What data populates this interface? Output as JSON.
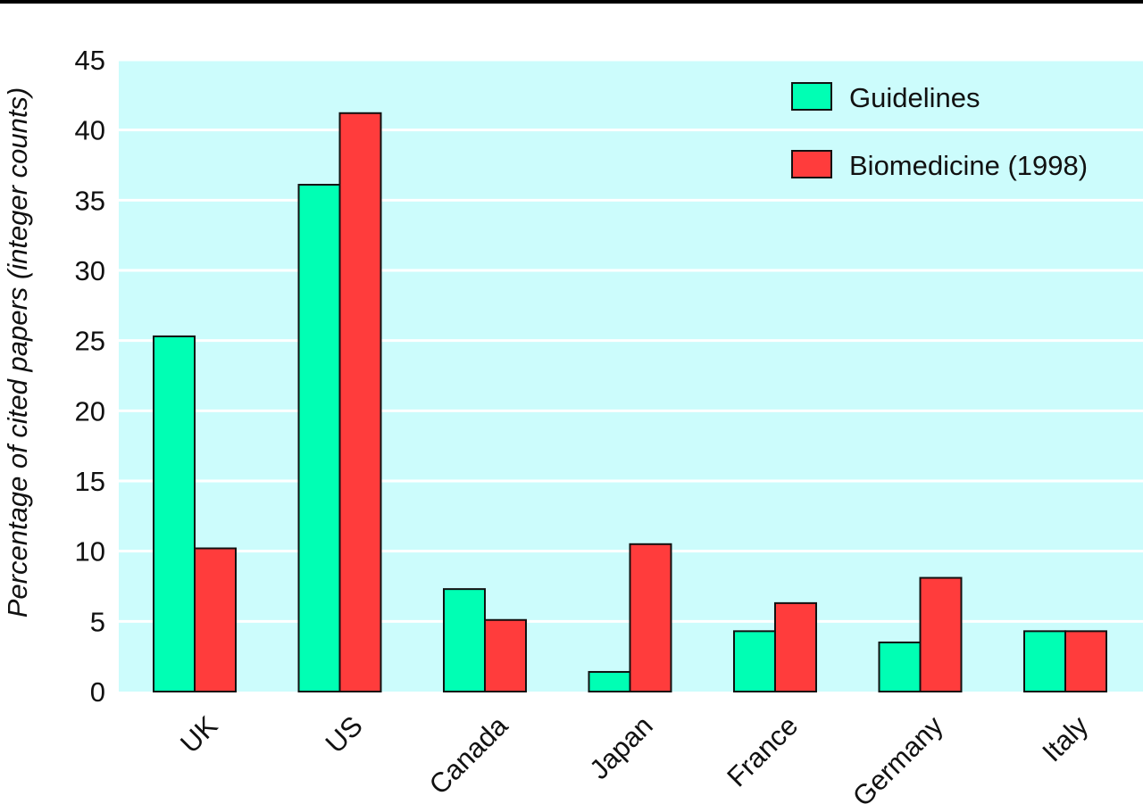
{
  "chart_data": {
    "type": "bar",
    "ylabel": "Percentage of cited papers (integer counts)",
    "xlabel": "",
    "categories": [
      "UK",
      "US",
      "Canada",
      "Japan",
      "France",
      "Germany",
      "Italy"
    ],
    "series": [
      {
        "name": "Guidelines",
        "color": "#00ffb4",
        "values": [
          25.3,
          36.1,
          7.3,
          1.4,
          4.3,
          3.5,
          4.3
        ]
      },
      {
        "name": "Biomedicine (1998)",
        "color": "#ff3c3c",
        "values": [
          10.2,
          41.2,
          5.1,
          10.5,
          6.3,
          8.1,
          4.3
        ]
      }
    ],
    "ylim": [
      0,
      45
    ],
    "yticks": [
      0,
      5,
      10,
      15,
      20,
      25,
      30,
      35,
      40,
      45
    ],
    "grid": true,
    "legend": "top-right",
    "plot_background": "#ccfcfc"
  }
}
